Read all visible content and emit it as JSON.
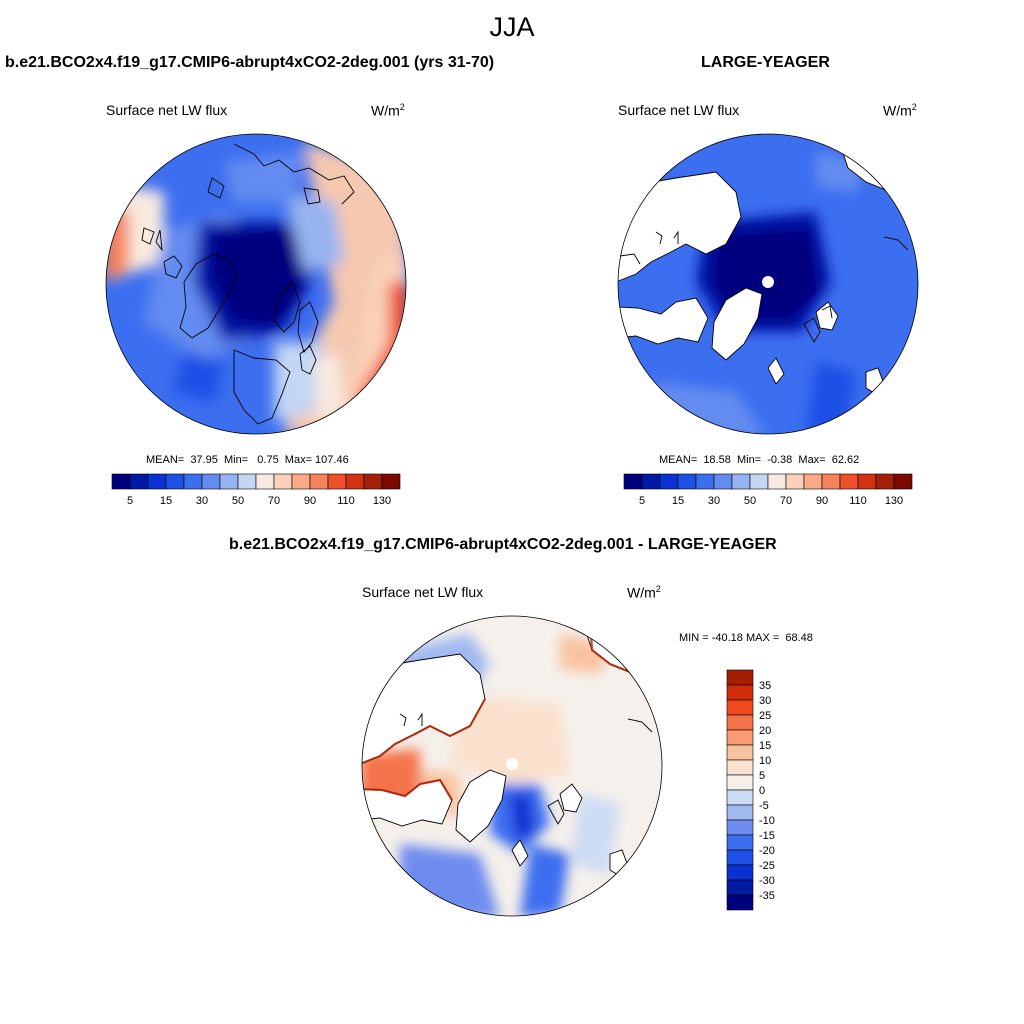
{
  "season": "JJA",
  "palette": {
    "abs": [
      "#00007f",
      "#0018a8",
      "#0a32d2",
      "#1e50e6",
      "#3c6ef0",
      "#648cf0",
      "#96b4f0",
      "#c3d7f5",
      "#f9eadf",
      "#fad2b9",
      "#faaa87",
      "#f5825a",
      "#f05028",
      "#d23214",
      "#a51e0a",
      "#7d0a00"
    ],
    "diff": [
      "#00007f",
      "#001aa0",
      "#0a32d2",
      "#1e50e6",
      "#3c6ef0",
      "#6e8cf0",
      "#a0b9f0",
      "#cddcf5",
      "#f5f0eb",
      "#fae1cd",
      "#fac3a0",
      "#fa9b73",
      "#f5734b",
      "#f04b1e",
      "#d22d0a",
      "#a51e00",
      "#7d0a00"
    ],
    "land": "#ffffff",
    "coast": "#000000"
  },
  "panel1": {
    "title": "b.e21.BCO2x4.f19_g17.CMIP6-abrupt4xCO2-2deg.001 (yrs 31-70)",
    "subtitle": "Surface net LW flux",
    "units": "W/m",
    "units_sup": "2",
    "stats": "MEAN=  37.95  Min=   0.75  Max= 107.46",
    "colorbar_labels": [
      "5",
      "15",
      "30",
      "50",
      "70",
      "90",
      "110",
      "130"
    ]
  },
  "panel2": {
    "title": "LARGE-YEAGER",
    "subtitle": "Surface net LW flux",
    "units": "W/m",
    "units_sup": "2",
    "stats": "MEAN=  18.58  Min=  -0.38  Max=  62.62",
    "colorbar_labels": [
      "5",
      "15",
      "30",
      "50",
      "70",
      "90",
      "110",
      "130"
    ]
  },
  "panel3": {
    "title": "b.e21.BCO2x4.f19_g17.CMIP6-abrupt4xCO2-2deg.001 - LARGE-YEAGER",
    "subtitle": "Surface net LW flux",
    "units": "W/m",
    "units_sup": "2",
    "stats": "MIN = -40.18 MAX =  68.48",
    "colorbar_labels": [
      "35",
      "30",
      "25",
      "20",
      "15",
      "10",
      "5",
      "0",
      "-5",
      "-10",
      "-15",
      "-20",
      "-25",
      "-30",
      "-35"
    ]
  }
}
